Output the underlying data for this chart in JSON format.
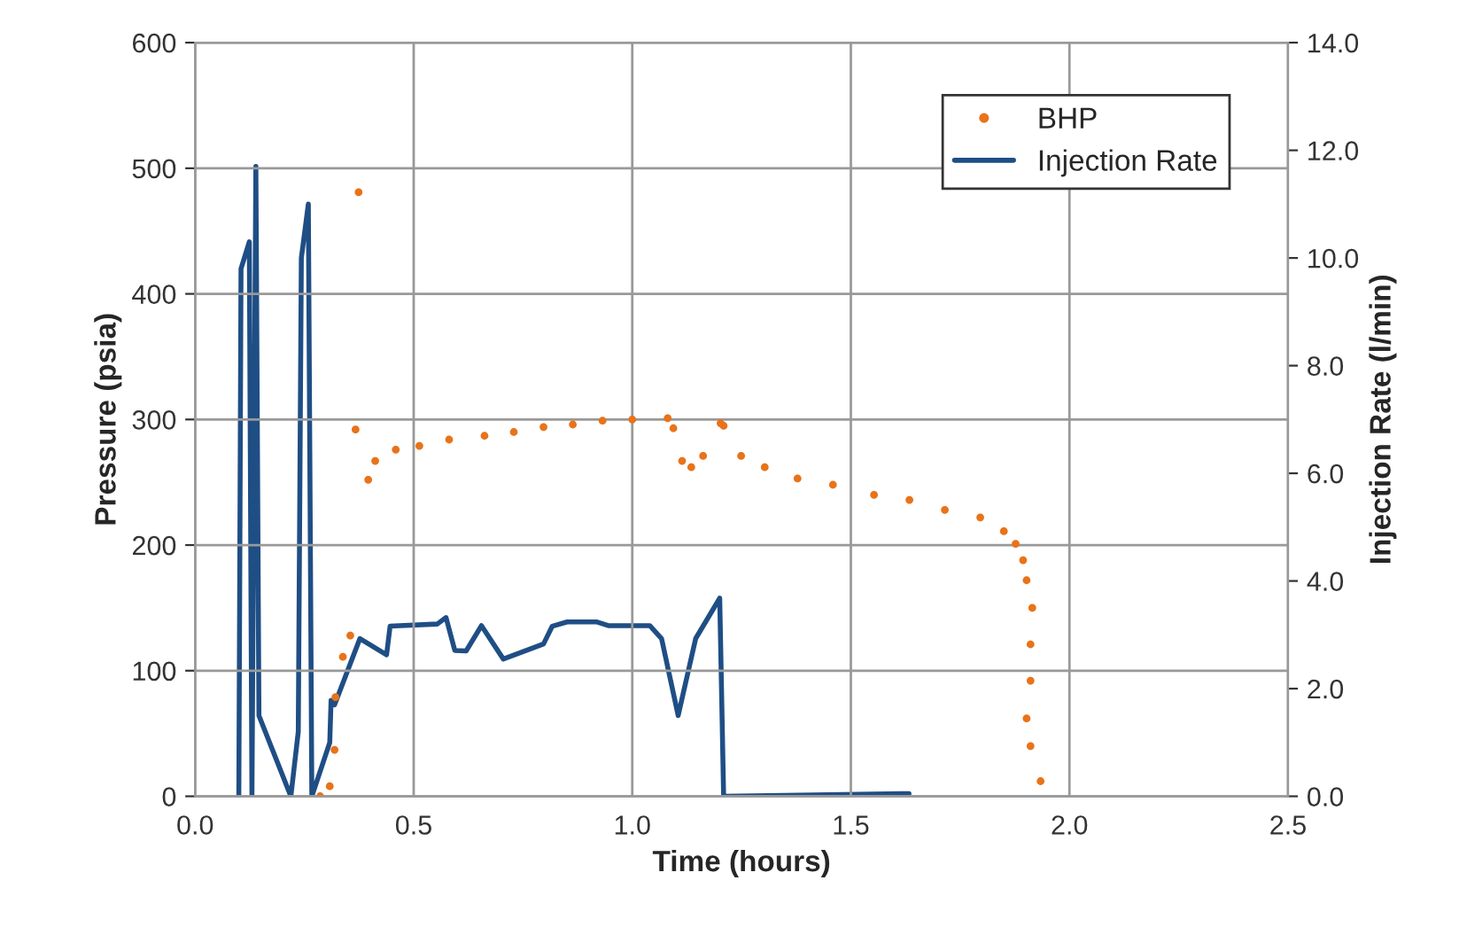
{
  "chart_data": {
    "type": "scatter",
    "xlabel": "Time (hours)",
    "ylabel": "Pressure (psia)",
    "y2label": "Injection Rate (l/min)",
    "xlim": [
      0,
      2.5
    ],
    "xticks": [
      {
        "value": 0,
        "label": "0.0"
      },
      {
        "value": 0.5,
        "label": "0.5"
      },
      {
        "value": 1,
        "label": "1.0"
      },
      {
        "value": 1.5,
        "label": "1.5"
      },
      {
        "value": 2,
        "label": "2.0"
      },
      {
        "value": 2.5,
        "label": "2.5"
      }
    ],
    "ylim": [
      0,
      600
    ],
    "yticks": [
      0,
      100,
      200,
      300,
      400,
      500,
      600
    ],
    "y2lim": [
      0,
      14
    ],
    "y2ticks": [
      {
        "value": 0,
        "label": "0.0"
      },
      {
        "value": 2,
        "label": "2.0"
      },
      {
        "value": 4,
        "label": "4.0"
      },
      {
        "value": 6,
        "label": "6.0"
      },
      {
        "value": 8,
        "label": "8.0"
      },
      {
        "value": 10,
        "label": "10.0"
      },
      {
        "value": 12,
        "label": "12.0"
      },
      {
        "value": 14,
        "label": "14.0"
      }
    ],
    "grid": true,
    "legend": "top right",
    "marker": "circle",
    "series": [
      {
        "name": "BHP",
        "color": "#e8731a",
        "x": [
          0.286,
          0.308,
          0.319,
          0.321,
          0.338,
          0.355,
          0.367,
          0.374,
          0.396,
          0.412,
          0.459,
          0.513,
          0.581,
          0.662,
          0.729,
          0.797,
          0.864,
          0.932,
          1.0,
          1.081,
          1.094,
          1.114,
          1.135,
          1.162,
          1.202,
          1.209,
          1.249,
          1.303,
          1.378,
          1.459,
          1.553,
          1.634,
          1.715,
          1.796,
          1.85,
          1.877,
          1.894,
          1.902,
          1.915,
          1.911,
          1.911,
          1.902,
          1.911,
          1.934
        ],
        "values": [
          0,
          8,
          37,
          79,
          111,
          128,
          292,
          481,
          252,
          267,
          276,
          279,
          284,
          287,
          290,
          294,
          296,
          299,
          300,
          301,
          293,
          267,
          262,
          271,
          297,
          295,
          271,
          262,
          253,
          248,
          240,
          236,
          228,
          222,
          211,
          201,
          188,
          172,
          150,
          121,
          92,
          62,
          40,
          12
        ]
      },
      {
        "name": "Injection Rate",
        "type": "line",
        "axis": "y2",
        "color": "#1f4e85",
        "marker": "none",
        "x": [
          0.1,
          0.105,
          0.124,
          0.13,
          0.139,
          0.146,
          0.219,
          0.236,
          0.243,
          0.259,
          0.267,
          0.308,
          0.311,
          0.319,
          0.377,
          0.438,
          0.446,
          0.554,
          0.574,
          0.594,
          0.62,
          0.655,
          0.705,
          0.797,
          0.817,
          0.851,
          0.918,
          0.945,
          1.04,
          1.067,
          1.105,
          1.145,
          1.2,
          1.209,
          1.633
        ],
        "values": [
          0,
          9.8,
          10.3,
          0,
          11.7,
          1.5,
          0,
          1.2,
          10.0,
          11.0,
          0,
          1.0,
          1.78,
          1.7,
          2.93,
          2.63,
          3.16,
          3.2,
          3.32,
          2.71,
          2.7,
          3.17,
          2.55,
          2.83,
          3.16,
          3.24,
          3.24,
          3.17,
          3.17,
          2.93,
          1.5,
          2.93,
          3.68,
          0,
          0.05
        ]
      }
    ]
  }
}
